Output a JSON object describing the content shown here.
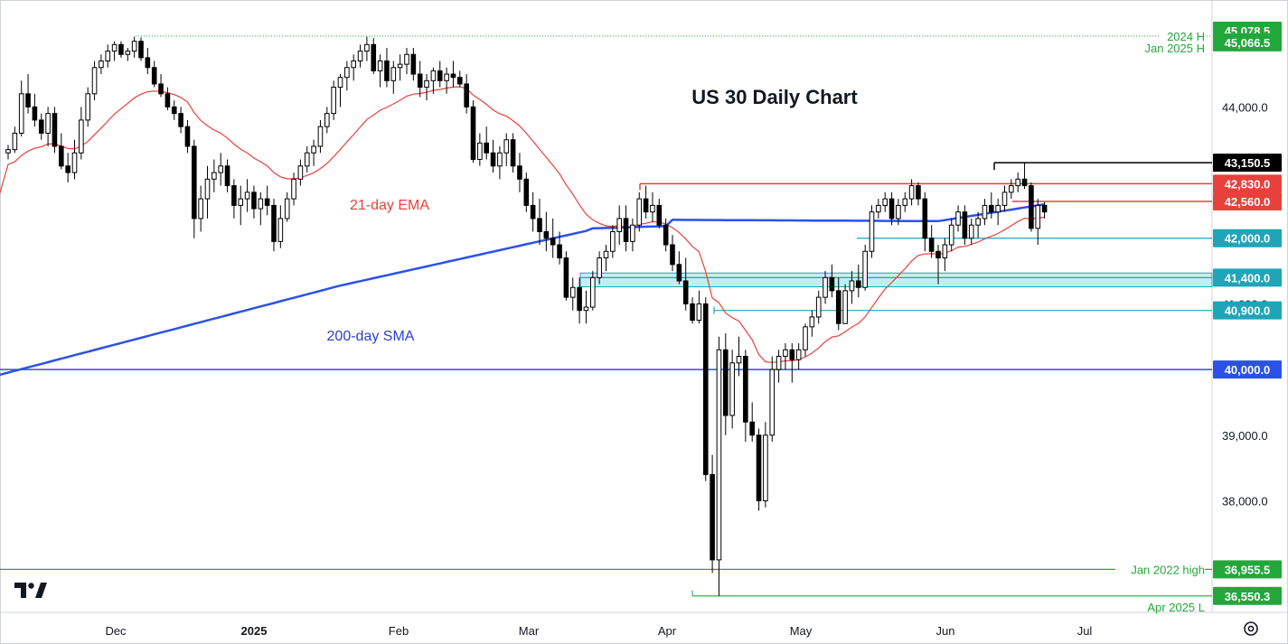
{
  "chart_data": {
    "type": "candlestick",
    "title": "US 30 Daily Chart",
    "x_ticks": [
      "Dec",
      "2025",
      "Feb",
      "Mar",
      "Apr",
      "May",
      "Jun",
      "Jul"
    ],
    "y_ticks": [
      "44,000.0",
      "39,000.0",
      "38,000.0"
    ],
    "y_ticks_values": [
      44000,
      39000,
      38000
    ],
    "ylim": [
      36300,
      45450
    ],
    "grid": false,
    "series": [
      {
        "name": "21-day EMA",
        "color": "#e8413b"
      },
      {
        "name": "200-day SMA",
        "color": "#2a52e8"
      }
    ],
    "candles": [
      [
        43300,
        43420,
        43200,
        43350
      ],
      [
        43350,
        43700,
        43300,
        43600
      ],
      [
        43600,
        44400,
        43550,
        44200
      ],
      [
        44200,
        44500,
        43900,
        44000
      ],
      [
        44000,
        44200,
        43700,
        43800
      ],
      [
        43800,
        43900,
        43500,
        43600
      ],
      [
        43600,
        44000,
        43400,
        43900
      ],
      [
        43900,
        44000,
        43300,
        43400
      ],
      [
        43400,
        43600,
        43050,
        43100
      ],
      [
        43100,
        43300,
        42850,
        43000
      ],
      [
        43000,
        43500,
        42900,
        43300
      ],
      [
        43300,
        44000,
        43200,
        43800
      ],
      [
        43800,
        44300,
        43700,
        44200
      ],
      [
        44200,
        44700,
        44100,
        44600
      ],
      [
        44600,
        44800,
        44500,
        44700
      ],
      [
        44700,
        44950,
        44600,
        44850
      ],
      [
        44850,
        45000,
        44700,
        44950
      ],
      [
        44950,
        45000,
        44750,
        44800
      ],
      [
        44800,
        44900,
        44700,
        44850
      ],
      [
        44850,
        45070,
        44750,
        45000
      ],
      [
        45000,
        45060,
        44700,
        44750
      ],
      [
        44750,
        44900,
        44500,
        44600
      ],
      [
        44600,
        44700,
        44300,
        44350
      ],
      [
        44350,
        44500,
        44150,
        44200
      ],
      [
        44200,
        44300,
        43950,
        44000
      ],
      [
        44000,
        44100,
        43800,
        43900
      ],
      [
        43900,
        44000,
        43600,
        43700
      ],
      [
        43700,
        43800,
        43300,
        43400
      ],
      [
        43400,
        43500,
        42000,
        42300
      ],
      [
        42300,
        42800,
        42100,
        42600
      ],
      [
        42600,
        43100,
        42300,
        42900
      ],
      [
        42900,
        43200,
        42700,
        43000
      ],
      [
        43000,
        43300,
        42800,
        43100
      ],
      [
        43100,
        43200,
        42700,
        42800
      ],
      [
        42800,
        42900,
        42300,
        42500
      ],
      [
        42500,
        42800,
        42200,
        42600
      ],
      [
        42600,
        42900,
        42400,
        42700
      ],
      [
        42700,
        42800,
        42300,
        42450
      ],
      [
        42450,
        42700,
        42200,
        42600
      ],
      [
        42600,
        42800,
        42350,
        42500
      ],
      [
        42500,
        42600,
        41800,
        41950
      ],
      [
        41950,
        42500,
        41850,
        42300
      ],
      [
        42300,
        42700,
        42250,
        42600
      ],
      [
        42600,
        43000,
        42500,
        42900
      ],
      [
        42900,
        43200,
        42800,
        43100
      ],
      [
        43100,
        43400,
        43000,
        43300
      ],
      [
        43300,
        43500,
        43100,
        43400
      ],
      [
        43400,
        43800,
        43300,
        43700
      ],
      [
        43700,
        44000,
        43600,
        43900
      ],
      [
        43900,
        44400,
        43800,
        44300
      ],
      [
        44300,
        44500,
        44000,
        44450
      ],
      [
        44450,
        44700,
        44250,
        44600
      ],
      [
        44600,
        44800,
        44400,
        44700
      ],
      [
        44700,
        44950,
        44600,
        44850
      ],
      [
        44850,
        45070,
        44700,
        44950
      ],
      [
        44950,
        45050,
        44500,
        44550
      ],
      [
        44550,
        44800,
        44300,
        44700
      ],
      [
        44700,
        44900,
        44300,
        44400
      ],
      [
        44400,
        44700,
        44200,
        44600
      ],
      [
        44600,
        44800,
        44400,
        44650
      ],
      [
        44650,
        44900,
        44500,
        44800
      ],
      [
        44800,
        44900,
        44400,
        44500
      ],
      [
        44500,
        44700,
        44150,
        44300
      ],
      [
        44300,
        44500,
        44100,
        44400
      ],
      [
        44400,
        44600,
        44200,
        44550
      ],
      [
        44550,
        44700,
        44300,
        44400
      ],
      [
        44400,
        44600,
        44200,
        44500
      ],
      [
        44500,
        44700,
        44300,
        44450
      ],
      [
        44450,
        44550,
        44300,
        44350
      ],
      [
        44350,
        44500,
        43900,
        44000
      ],
      [
        44000,
        44100,
        43150,
        43200
      ],
      [
        43200,
        43600,
        43100,
        43450
      ],
      [
        43450,
        43700,
        43200,
        43300
      ],
      [
        43300,
        43500,
        43000,
        43100
      ],
      [
        43100,
        43400,
        42900,
        43300
      ],
      [
        43300,
        43600,
        43100,
        43500
      ],
      [
        43500,
        43600,
        43000,
        43100
      ],
      [
        43100,
        43300,
        42700,
        42900
      ],
      [
        42900,
        43000,
        42400,
        42500
      ],
      [
        42500,
        42700,
        42100,
        42300
      ],
      [
        42300,
        42600,
        41900,
        42100
      ],
      [
        42100,
        42400,
        41800,
        42000
      ],
      [
        42000,
        42300,
        41700,
        41900
      ],
      [
        41900,
        42100,
        41600,
        41700
      ],
      [
        41700,
        41800,
        41050,
        41100
      ],
      [
        41100,
        41400,
        40900,
        41250
      ],
      [
        41250,
        41400,
        40700,
        40900
      ],
      [
        40900,
        41200,
        40700,
        40950
      ],
      [
        40950,
        41500,
        40900,
        41400
      ],
      [
        41400,
        41800,
        41300,
        41700
      ],
      [
        41700,
        41900,
        41500,
        41800
      ],
      [
        41800,
        42200,
        41700,
        42100
      ],
      [
        42100,
        42500,
        41900,
        42300
      ],
      [
        42300,
        42500,
        41800,
        41950
      ],
      [
        41950,
        42300,
        41800,
        42200
      ],
      [
        42200,
        42700,
        42100,
        42600
      ],
      [
        42600,
        42800,
        42300,
        42400
      ],
      [
        42400,
        42700,
        42250,
        42500
      ],
      [
        42500,
        42600,
        42150,
        42200
      ],
      [
        42200,
        42300,
        41800,
        41900
      ],
      [
        41900,
        42050,
        41500,
        41600
      ],
      [
        41600,
        41800,
        41300,
        41350
      ],
      [
        41350,
        41700,
        40900,
        41000
      ],
      [
        41000,
        41100,
        40700,
        40750
      ],
      [
        40750,
        41200,
        40700,
        41000
      ],
      [
        41000,
        41100,
        38300,
        38400
      ],
      [
        38400,
        38700,
        36900,
        37100
      ],
      [
        37100,
        40500,
        36550,
        40300
      ],
      [
        40300,
        40550,
        39000,
        39300
      ],
      [
        39300,
        40300,
        39100,
        40100
      ],
      [
        40100,
        40500,
        39900,
        40200
      ],
      [
        40200,
        40300,
        38900,
        39200
      ],
      [
        39200,
        39500,
        38900,
        39000
      ],
      [
        39000,
        39100,
        37850,
        38000
      ],
      [
        38000,
        39200,
        37900,
        39000
      ],
      [
        39000,
        40200,
        38900,
        40000
      ],
      [
        40000,
        40300,
        39800,
        40200
      ],
      [
        40200,
        40400,
        40000,
        40300
      ],
      [
        40300,
        40400,
        39800,
        40150
      ],
      [
        40150,
        40400,
        40000,
        40300
      ],
      [
        40300,
        40700,
        40200,
        40650
      ],
      [
        40650,
        40900,
        40500,
        40800
      ],
      [
        40800,
        41200,
        40700,
        41100
      ],
      [
        41100,
        41500,
        41000,
        41400
      ],
      [
        41400,
        41600,
        41100,
        41200
      ],
      [
        41200,
        41400,
        40600,
        40700
      ],
      [
        40700,
        41300,
        40700,
        41200
      ],
      [
        41200,
        41500,
        41000,
        41350
      ],
      [
        41350,
        41600,
        41100,
        41250
      ],
      [
        41250,
        41900,
        41200,
        41800
      ],
      [
        41800,
        42500,
        41700,
        42400
      ],
      [
        42400,
        42600,
        42300,
        42500
      ],
      [
        42500,
        42700,
        42400,
        42600
      ],
      [
        42600,
        42700,
        42200,
        42300
      ],
      [
        42300,
        42600,
        42200,
        42500
      ],
      [
        42500,
        42700,
        42400,
        42600
      ],
      [
        42600,
        42900,
        42500,
        42800
      ],
      [
        42800,
        42850,
        42500,
        42600
      ],
      [
        42600,
        42700,
        41800,
        42000
      ],
      [
        42000,
        42200,
        41700,
        41800
      ],
      [
        41800,
        41900,
        41300,
        41700
      ],
      [
        41700,
        42000,
        41500,
        41900
      ],
      [
        41900,
        42300,
        41800,
        42200
      ],
      [
        42200,
        42500,
        42100,
        42400
      ],
      [
        42400,
        42500,
        41900,
        42000
      ],
      [
        42000,
        42300,
        41900,
        42200
      ],
      [
        42200,
        42400,
        42000,
        42300
      ],
      [
        42300,
        42600,
        42200,
        42500
      ],
      [
        42500,
        42700,
        42300,
        42400
      ],
      [
        42400,
        42600,
        42200,
        42500
      ],
      [
        42500,
        42800,
        42400,
        42700
      ],
      [
        42700,
        42900,
        42600,
        42800
      ],
      [
        42800,
        43000,
        42700,
        42900
      ],
      [
        42900,
        43150,
        42750,
        42800
      ],
      [
        42800,
        42850,
        42100,
        42150
      ],
      [
        42150,
        42600,
        41900,
        42500
      ],
      [
        42500,
        42550,
        42300,
        42400
      ]
    ]
  },
  "ema_label": "21-day EMA",
  "sma_label": "200-day SMA",
  "levels": [
    {
      "label": "45,078.5",
      "value": 45078.5,
      "color": "#22a83a",
      "note": "2024 H",
      "dotted": true
    },
    {
      "label": "45,066.5",
      "value": 45066.5,
      "color": "#22a83a",
      "note": "Jan 2025 H",
      "note_below": true
    },
    {
      "label": "43,150.5",
      "value": 43150.5,
      "color": "#000000"
    },
    {
      "label": "42,830.0",
      "value": 42830,
      "color": "#e8413b"
    },
    {
      "label": "42,560.0",
      "value": 42560,
      "color": "#e8413b"
    },
    {
      "label": "42,000.0",
      "value": 42000,
      "color": "#1fa4b8"
    },
    {
      "label": "41,400.0",
      "value": 41400,
      "color": "#1fa4b8"
    },
    {
      "label": "40,900.0",
      "value": 40900,
      "color": "#1fa4b8"
    },
    {
      "label": "40,000.0",
      "value": 40000,
      "color": "#2a52e8"
    },
    {
      "label": "36,955.5",
      "value": 36955.5,
      "color": "#22a83a",
      "note": "Jan 2022 high"
    },
    {
      "label": "36,550.3",
      "value": 36550.3,
      "color": "#22a83a",
      "note": "Apr 2025 L",
      "note_below": true
    }
  ],
  "partial_tick": "41,000.0",
  "colors": {
    "up": "#ffffff",
    "down": "#000000",
    "wick": "#000000",
    "zone": "#8fe0ea"
  }
}
